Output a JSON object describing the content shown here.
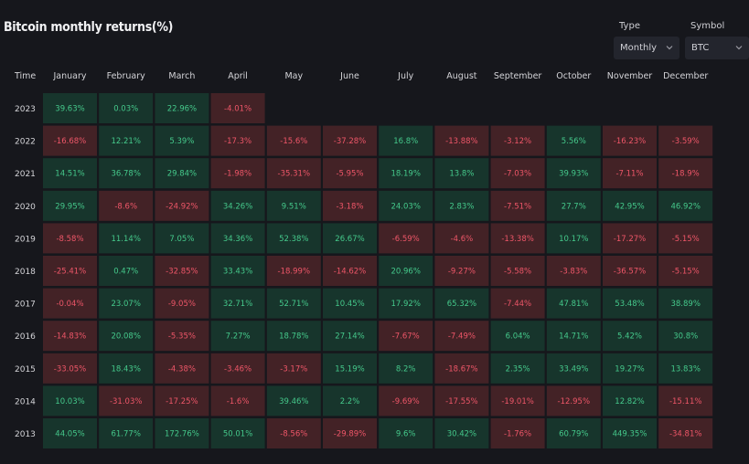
{
  "title": "Bitcoin monthly returns(%)",
  "controls": {
    "type": {
      "label": "Type",
      "value": "Monthly"
    },
    "symbol": {
      "label": "Symbol",
      "value": "BTC"
    }
  },
  "colors": {
    "positive": "#17352c",
    "negative": "#432226",
    "positive_text": "#45c98b",
    "negative_text": "#ee5668",
    "background": "#16171c",
    "header_text": "#d4d4d8"
  },
  "chart_data": {
    "type": "heatmap",
    "title": "Bitcoin monthly returns(%)",
    "row_header": "Time",
    "columns": [
      "January",
      "February",
      "March",
      "April",
      "May",
      "June",
      "July",
      "August",
      "September",
      "October",
      "November",
      "December"
    ],
    "rows": [
      {
        "year": "2023",
        "values": [
          "39.63%",
          "0.03%",
          "22.96%",
          "-4.01%",
          null,
          null,
          null,
          null,
          null,
          null,
          null,
          null
        ]
      },
      {
        "year": "2022",
        "values": [
          "-16.68%",
          "12.21%",
          "5.39%",
          "-17.3%",
          "-15.6%",
          "-37.28%",
          "16.8%",
          "-13.88%",
          "-3.12%",
          "5.56%",
          "-16.23%",
          "-3.59%"
        ]
      },
      {
        "year": "2021",
        "values": [
          "14.51%",
          "36.78%",
          "29.84%",
          "-1.98%",
          "-35.31%",
          "-5.95%",
          "18.19%",
          "13.8%",
          "-7.03%",
          "39.93%",
          "-7.11%",
          "-18.9%"
        ]
      },
      {
        "year": "2020",
        "values": [
          "29.95%",
          "-8.6%",
          "-24.92%",
          "34.26%",
          "9.51%",
          "-3.18%",
          "24.03%",
          "2.83%",
          "-7.51%",
          "27.7%",
          "42.95%",
          "46.92%"
        ]
      },
      {
        "year": "2019",
        "values": [
          "-8.58%",
          "11.14%",
          "7.05%",
          "34.36%",
          "52.38%",
          "26.67%",
          "-6.59%",
          "-4.6%",
          "-13.38%",
          "10.17%",
          "-17.27%",
          "-5.15%"
        ]
      },
      {
        "year": "2018",
        "values": [
          "-25.41%",
          "0.47%",
          "-32.85%",
          "33.43%",
          "-18.99%",
          "-14.62%",
          "20.96%",
          "-9.27%",
          "-5.58%",
          "-3.83%",
          "-36.57%",
          "-5.15%"
        ]
      },
      {
        "year": "2017",
        "values": [
          "-0.04%",
          "23.07%",
          "-9.05%",
          "32.71%",
          "52.71%",
          "10.45%",
          "17.92%",
          "65.32%",
          "-7.44%",
          "47.81%",
          "53.48%",
          "38.89%"
        ]
      },
      {
        "year": "2016",
        "values": [
          "-14.83%",
          "20.08%",
          "-5.35%",
          "7.27%",
          "18.78%",
          "27.14%",
          "-7.67%",
          "-7.49%",
          "6.04%",
          "14.71%",
          "5.42%",
          "30.8%"
        ]
      },
      {
        "year": "2015",
        "values": [
          "-33.05%",
          "18.43%",
          "-4.38%",
          "-3.46%",
          "-3.17%",
          "15.19%",
          "8.2%",
          "-18.67%",
          "2.35%",
          "33.49%",
          "19.27%",
          "13.83%"
        ]
      },
      {
        "year": "2014",
        "values": [
          "10.03%",
          "-31.03%",
          "-17.25%",
          "-1.6%",
          "39.46%",
          "2.2%",
          "-9.69%",
          "-17.55%",
          "-19.01%",
          "-12.95%",
          "12.82%",
          "-15.11%"
        ]
      },
      {
        "year": "2013",
        "values": [
          "44.05%",
          "61.77%",
          "172.76%",
          "50.01%",
          "-8.56%",
          "-29.89%",
          "9.6%",
          "30.42%",
          "-1.76%",
          "60.79%",
          "449.35%",
          "-34.81%"
        ]
      }
    ]
  }
}
